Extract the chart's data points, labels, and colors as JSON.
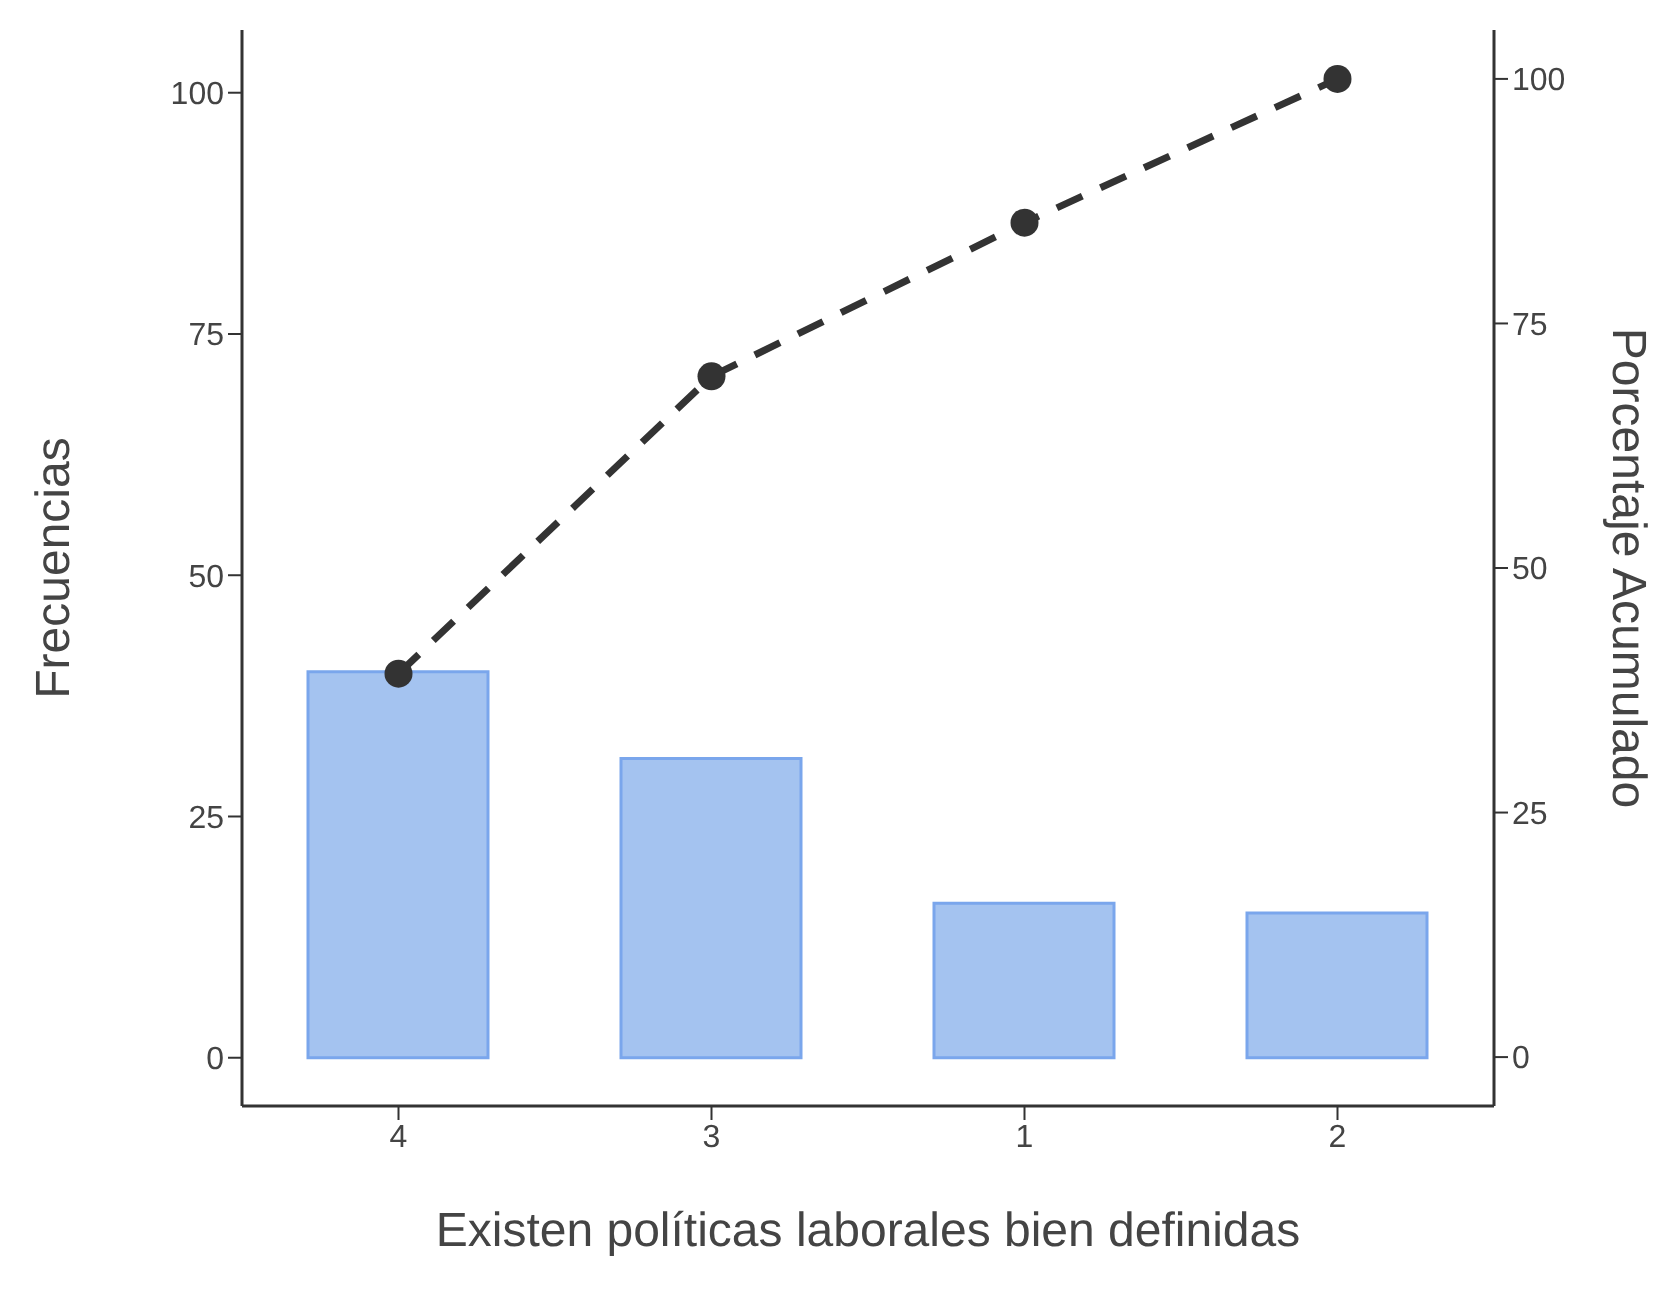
{
  "chart_data": {
    "type": "bar",
    "xlabel": "Existen políticas laborales bien definidas",
    "ylabel": "Frecuencias",
    "y2label": "Porcentaje Acumulado",
    "categories": [
      "4",
      "3",
      "1",
      "2"
    ],
    "series": [
      {
        "color": "#a4c3f0",
        "values": [
          40,
          31,
          16,
          15
        ]
      },
      {
        "type": "line",
        "axis": "y2",
        "color": "#333333",
        "values": [
          39.2,
          69.6,
          85.3,
          100
        ]
      }
    ],
    "ylim": [
      -5,
      106.5
    ],
    "yticks": [
      0,
      25,
      50,
      75,
      100
    ],
    "y2lim": [
      -5,
      105
    ],
    "y2ticks": [
      0,
      25,
      50,
      75,
      100
    ],
    "grid": false,
    "marker": "circle",
    "line_style": "dashed"
  }
}
